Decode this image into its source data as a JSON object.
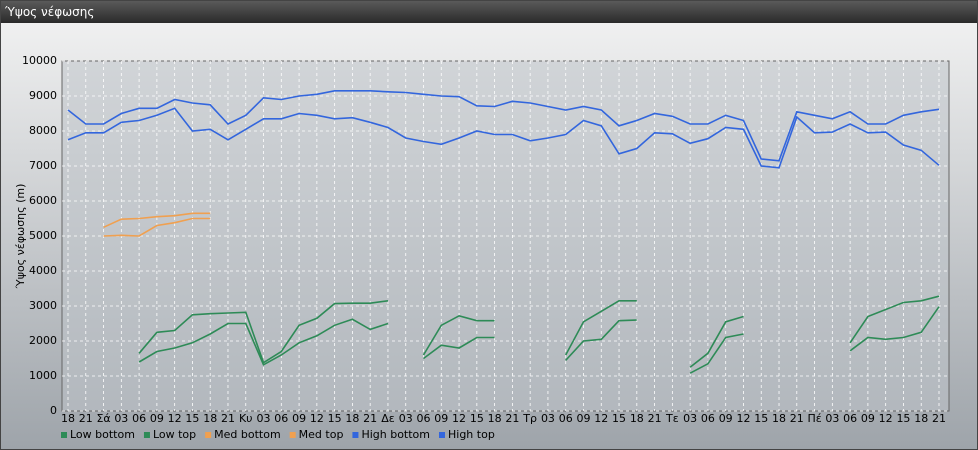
{
  "window_title": "Ύψος νέφωσης",
  "chart_data": {
    "type": "line",
    "y_label": "Ύψος νέφωσης (m)",
    "categories": [
      "18",
      "21",
      "Σά",
      "03",
      "06",
      "09",
      "12",
      "15",
      "18",
      "21",
      "Κυ",
      "03",
      "06",
      "09",
      "12",
      "15",
      "18",
      "21",
      "Δε",
      "03",
      "06",
      "09",
      "12",
      "15",
      "18",
      "21",
      "Τρ",
      "03",
      "06",
      "09",
      "12",
      "15",
      "18",
      "21",
      "Τε",
      "03",
      "06",
      "09",
      "12",
      "15",
      "18",
      "21",
      "Πέ",
      "03",
      "06",
      "09",
      "12",
      "15",
      "18",
      "21"
    ],
    "ylim": [
      0,
      10000
    ],
    "yticks": [
      0,
      1000,
      2000,
      3000,
      4000,
      5000,
      6000,
      7000,
      8000,
      9000,
      10000
    ],
    "grid": true,
    "series": [
      {
        "name": "Low bottom",
        "color": "#2e8b57",
        "values": [
          null,
          null,
          null,
          null,
          1400,
          1700,
          1800,
          1950,
          2200,
          2500,
          2500,
          1320,
          1600,
          1950,
          2150,
          2450,
          2620,
          2330,
          2500,
          null,
          1500,
          1880,
          1800,
          2100,
          2100,
          null,
          null,
          null,
          1450,
          2000,
          2050,
          2580,
          2600,
          null,
          null,
          1080,
          1350,
          2100,
          2200,
          null,
          null,
          null,
          null,
          null,
          1720,
          2100,
          2050,
          2100,
          2250,
          2980
        ]
      },
      {
        "name": "Low top",
        "color": "#2e8b57",
        "values": [
          null,
          null,
          null,
          null,
          1650,
          2250,
          2300,
          2750,
          2780,
          2800,
          2820,
          1380,
          1700,
          2450,
          2650,
          3070,
          3080,
          3080,
          3150,
          null,
          1600,
          2450,
          2720,
          2580,
          2580,
          null,
          null,
          null,
          1600,
          2550,
          2850,
          3150,
          3150,
          null,
          null,
          1250,
          1650,
          2550,
          2700,
          null,
          null,
          null,
          null,
          null,
          1950,
          2700,
          2900,
          3100,
          3150,
          3280
        ]
      },
      {
        "name": "Med bottom",
        "color": "#f0a050",
        "values": [
          null,
          null,
          5000,
          5020,
          5000,
          5300,
          5380,
          5500,
          5500,
          null,
          null,
          null,
          null,
          null,
          null,
          null,
          null,
          null,
          null,
          null,
          null,
          null,
          null,
          null,
          null,
          null,
          null,
          null,
          null,
          null,
          null,
          null,
          null,
          null,
          null,
          null,
          null,
          null,
          null,
          null,
          null,
          null,
          null,
          null,
          null,
          null,
          null,
          null,
          null,
          null
        ]
      },
      {
        "name": "Med top",
        "color": "#f0a050",
        "values": [
          null,
          null,
          5250,
          5480,
          5500,
          5550,
          5580,
          5650,
          5650,
          null,
          null,
          null,
          null,
          null,
          null,
          null,
          null,
          null,
          null,
          null,
          null,
          null,
          null,
          null,
          null,
          null,
          null,
          null,
          null,
          null,
          null,
          null,
          null,
          null,
          null,
          null,
          null,
          null,
          null,
          null,
          null,
          null,
          null,
          null,
          null,
          null,
          null,
          null,
          null,
          null
        ]
      },
      {
        "name": "High bottom",
        "color": "#3366dd",
        "values": [
          7750,
          7950,
          7950,
          8250,
          8300,
          8450,
          8650,
          8000,
          8050,
          7750,
          8050,
          8350,
          8350,
          8500,
          8450,
          8350,
          8380,
          8250,
          8100,
          7800,
          7700,
          7620,
          7800,
          8000,
          7900,
          7900,
          7720,
          7800,
          7900,
          8300,
          8150,
          7350,
          7500,
          7950,
          7920,
          7650,
          7780,
          8100,
          8050,
          7000,
          6950,
          8400,
          7950,
          7970,
          8200,
          7950,
          7970,
          7600,
          7450,
          7020
        ]
      },
      {
        "name": "High top",
        "color": "#3366dd",
        "values": [
          8600,
          8200,
          8200,
          8500,
          8650,
          8650,
          8900,
          8800,
          8750,
          8200,
          8450,
          8950,
          8900,
          9000,
          9050,
          9150,
          9150,
          9150,
          9120,
          9100,
          9050,
          9000,
          8980,
          8720,
          8700,
          8850,
          8800,
          8700,
          8600,
          8700,
          8600,
          8150,
          8300,
          8500,
          8420,
          8200,
          8200,
          8450,
          8300,
          7200,
          7150,
          8550,
          8450,
          8350,
          8550,
          8200,
          8200,
          8450,
          8550,
          8620
        ]
      }
    ]
  }
}
